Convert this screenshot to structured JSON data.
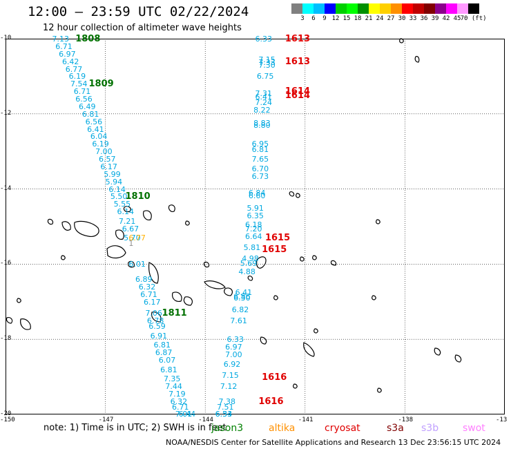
{
  "header": {
    "title": "12:00 – 23:59 UTC 02/22/2024",
    "subtitle": "12 hour collection of altimeter wave heights"
  },
  "colorbar": {
    "colors": [
      "#808080",
      "#00ffff",
      "#00bfff",
      "#0000ff",
      "#00d000",
      "#00ff00",
      "#009000",
      "#ffff00",
      "#ffd000",
      "#ff9000",
      "#ff0000",
      "#c00000",
      "#800000",
      "#8b008b",
      "#ff00ff",
      "#ff99ff",
      "#000000"
    ],
    "ticks": [
      "3",
      "6",
      "9",
      "12",
      "15",
      "18",
      "21",
      "24",
      "27",
      "30",
      "33",
      "36",
      "39",
      "42",
      "45",
      "70 (ft)"
    ]
  },
  "axes": {
    "ylabels": [
      "-10",
      "-12",
      "-14",
      "-16",
      "-18",
      "-20"
    ],
    "xlabels": [
      "-150",
      "-147",
      "-144",
      "-141",
      "-138",
      "-13"
    ]
  },
  "chart_data": {
    "type": "scatter",
    "xlim": [
      -150,
      -135
    ],
    "ylim": [
      -20,
      -10
    ],
    "grid": true,
    "tracks": [
      {
        "color": "#00a8e0",
        "time_labels": [
          {
            "text": "1808",
            "color": "#007000",
            "lon": -147.9,
            "lat": -10.0
          },
          {
            "text": "1809",
            "color": "#007000",
            "lon": -147.5,
            "lat": -11.2
          },
          {
            "text": "1810",
            "color": "#007000",
            "lon": -146.4,
            "lat": -14.2
          },
          {
            "text": "1811",
            "color": "#007000",
            "lon": -145.3,
            "lat": -17.3
          }
        ],
        "points": [
          {
            "lon": -148.6,
            "lat": -10.0,
            "v": "7.13"
          },
          {
            "lon": -148.5,
            "lat": -10.2,
            "v": "6.71"
          },
          {
            "lon": -148.4,
            "lat": -10.4,
            "v": "6.97"
          },
          {
            "lon": -148.3,
            "lat": -10.6,
            "v": "6.42"
          },
          {
            "lon": -148.2,
            "lat": -10.8,
            "v": "6.77"
          },
          {
            "lon": -148.1,
            "lat": -11.0,
            "v": "6.19"
          },
          {
            "lon": -148.05,
            "lat": -11.2,
            "v": "7.54"
          },
          {
            "lon": -147.95,
            "lat": -11.4,
            "v": "6.71"
          },
          {
            "lon": -147.9,
            "lat": -11.6,
            "v": "6.56"
          },
          {
            "lon": -147.8,
            "lat": -11.8,
            "v": "6.49"
          },
          {
            "lon": -147.7,
            "lat": -12.0,
            "v": "6.81"
          },
          {
            "lon": -147.6,
            "lat": -12.2,
            "v": "6.56"
          },
          {
            "lon": -147.55,
            "lat": -12.4,
            "v": "6.41"
          },
          {
            "lon": -147.45,
            "lat": -12.6,
            "v": "6.04"
          },
          {
            "lon": -147.4,
            "lat": -12.8,
            "v": "6.19"
          },
          {
            "lon": -147.3,
            "lat": -13.0,
            "v": "7.00"
          },
          {
            "lon": -147.2,
            "lat": -13.2,
            "v": "6.57"
          },
          {
            "lon": -147.15,
            "lat": -13.4,
            "v": "6.17"
          },
          {
            "lon": -147.05,
            "lat": -13.6,
            "v": "5.99"
          },
          {
            "lon": -147.0,
            "lat": -13.8,
            "v": "5.94"
          },
          {
            "lon": -146.9,
            "lat": -14.0,
            "v": "6.14"
          },
          {
            "lon": -146.85,
            "lat": -14.2,
            "v": "5.50"
          },
          {
            "lon": -146.75,
            "lat": -14.4,
            "v": "5.55"
          },
          {
            "lon": -146.65,
            "lat": -14.6,
            "v": "6.14"
          },
          {
            "lon": -146.6,
            "lat": -14.85,
            "v": "7.21"
          },
          {
            "lon": -146.5,
            "lat": -15.05,
            "v": "6.67"
          },
          {
            "lon": -146.45,
            "lat": -15.3,
            "v": "5.70"
          },
          {
            "lon": -146.3,
            "lat": -16.0,
            "v": "6.01"
          },
          {
            "lon": -146.1,
            "lat": -16.4,
            "v": "6.89"
          },
          {
            "lon": -146.0,
            "lat": -16.6,
            "v": "6.32"
          },
          {
            "lon": -145.95,
            "lat": -16.8,
            "v": "6.71"
          },
          {
            "lon": -145.85,
            "lat": -17.0,
            "v": "6.17"
          },
          {
            "lon": -145.8,
            "lat": -17.3,
            "v": "7.06"
          },
          {
            "lon": -145.75,
            "lat": -17.5,
            "v": "6.78"
          },
          {
            "lon": -145.7,
            "lat": -17.65,
            "v": "6.59"
          },
          {
            "lon": -145.65,
            "lat": -17.9,
            "v": "6.91"
          },
          {
            "lon": -145.55,
            "lat": -18.15,
            "v": "6.81"
          },
          {
            "lon": -145.5,
            "lat": -18.35,
            "v": "6.87"
          },
          {
            "lon": -145.4,
            "lat": -18.55,
            "v": "6.07"
          },
          {
            "lon": -145.35,
            "lat": -18.8,
            "v": "6.81"
          },
          {
            "lon": -145.25,
            "lat": -19.05,
            "v": "7.35"
          },
          {
            "lon": -145.2,
            "lat": -19.25,
            "v": "7.44"
          },
          {
            "lon": -145.1,
            "lat": -19.45,
            "v": "7.19"
          },
          {
            "lon": -145.05,
            "lat": -19.65,
            "v": "6.32"
          },
          {
            "lon": -145.0,
            "lat": -19.8,
            "v": "6.71"
          },
          {
            "lon": -144.9,
            "lat": -20.0,
            "v": "7.01"
          },
          {
            "lon": -144.8,
            "lat": -20.2,
            "v": "6.44"
          }
        ]
      },
      {
        "color": "#00a8e0",
        "time_labels": [
          {
            "text": "1613",
            "color": "#e00000",
            "lon": -141.6,
            "lat": -10.0
          },
          {
            "text": "1613",
            "color": "#e00000",
            "lon": -141.6,
            "lat": -10.6
          },
          {
            "text": "1614",
            "color": "#e00000",
            "lon": -141.6,
            "lat": -11.4
          },
          {
            "text": "1614",
            "color": "#e00000",
            "lon": -141.6,
            "lat": -11.5
          },
          {
            "text": "1615",
            "color": "#e00000",
            "lon": -142.2,
            "lat": -15.3
          },
          {
            "text": "1615",
            "color": "#e00000",
            "lon": -142.3,
            "lat": -15.6
          },
          {
            "text": "1616",
            "color": "#e00000",
            "lon": -142.3,
            "lat": -19.0
          },
          {
            "text": "1616",
            "color": "#e00000",
            "lon": -142.4,
            "lat": -19.65
          }
        ],
        "points": [
          {
            "lon": -142.5,
            "lat": -10.0,
            "v": "6.33"
          },
          {
            "lon": -142.4,
            "lat": -10.55,
            "v": "7.15"
          },
          {
            "lon": -142.4,
            "lat": -10.62,
            "v": "7.33"
          },
          {
            "lon": -142.4,
            "lat": -10.7,
            "v": "7.30"
          },
          {
            "lon": -142.45,
            "lat": -11.0,
            "v": "6.75"
          },
          {
            "lon": -142.5,
            "lat": -11.45,
            "v": "7.31"
          },
          {
            "lon": -142.5,
            "lat": -11.55,
            "v": "6.41"
          },
          {
            "lon": -142.5,
            "lat": -11.7,
            "v": "7.24"
          },
          {
            "lon": -142.55,
            "lat": -11.9,
            "v": "8.22"
          },
          {
            "lon": -142.55,
            "lat": -12.25,
            "v": "8.83"
          },
          {
            "lon": -142.55,
            "lat": -12.3,
            "v": "8.80"
          },
          {
            "lon": -142.6,
            "lat": -12.8,
            "v": "6.95"
          },
          {
            "lon": -142.6,
            "lat": -12.95,
            "v": "6.81"
          },
          {
            "lon": -142.6,
            "lat": -13.2,
            "v": "7.65"
          },
          {
            "lon": -142.6,
            "lat": -13.45,
            "v": "6.70"
          },
          {
            "lon": -142.6,
            "lat": -13.65,
            "v": "6.73"
          },
          {
            "lon": -142.7,
            "lat": -14.1,
            "v": "6.84"
          },
          {
            "lon": -142.7,
            "lat": -14.18,
            "v": "6.60"
          },
          {
            "lon": -142.75,
            "lat": -14.5,
            "v": "5.91"
          },
          {
            "lon": -142.75,
            "lat": -14.7,
            "v": "6.35"
          },
          {
            "lon": -142.8,
            "lat": -14.95,
            "v": "6.18"
          },
          {
            "lon": -142.8,
            "lat": -15.05,
            "v": "7.20"
          },
          {
            "lon": -142.8,
            "lat": -15.25,
            "v": "6.64"
          },
          {
            "lon": -142.85,
            "lat": -15.55,
            "v": "5.81"
          },
          {
            "lon": -142.9,
            "lat": -15.85,
            "v": "4.98"
          },
          {
            "lon": -142.95,
            "lat": -15.97,
            "v": "5.69"
          },
          {
            "lon": -143.0,
            "lat": -16.2,
            "v": "4.88"
          },
          {
            "lon": -143.1,
            "lat": -16.75,
            "v": "6.41"
          },
          {
            "lon": -143.15,
            "lat": -16.85,
            "v": "6.86"
          },
          {
            "lon": -143.15,
            "lat": -16.9,
            "v": "6.30"
          },
          {
            "lon": -143.2,
            "lat": -17.2,
            "v": "6.82"
          },
          {
            "lon": -143.25,
            "lat": -17.5,
            "v": "7.61"
          },
          {
            "lon": -143.35,
            "lat": -18.0,
            "v": "6.33"
          },
          {
            "lon": -143.4,
            "lat": -18.2,
            "v": "6.97"
          },
          {
            "lon": -143.4,
            "lat": -18.4,
            "v": "7.00"
          },
          {
            "lon": -143.45,
            "lat": -18.65,
            "v": "6.92"
          },
          {
            "lon": -143.5,
            "lat": -18.95,
            "v": "7.15"
          },
          {
            "lon": -143.55,
            "lat": -19.25,
            "v": "7.12"
          },
          {
            "lon": -143.6,
            "lat": -19.65,
            "v": "7.38"
          },
          {
            "lon": -143.65,
            "lat": -19.8,
            "v": "7.51"
          },
          {
            "lon": -143.7,
            "lat": -20.0,
            "v": "6.54"
          },
          {
            "lon": -143.7,
            "lat": -20.1,
            "v": "6.33"
          }
        ]
      }
    ],
    "other_labels": [
      {
        "text": "6.77",
        "color": "#ffb000",
        "lon": -146.3,
        "lat": -15.3
      },
      {
        "text": "1",
        "color": "#909090",
        "lon": -146.3,
        "lat": -15.45
      }
    ]
  },
  "footer": {
    "note": "note: 1) Time is in UTC; 2) SWH is in feet",
    "satellites": [
      {
        "name": "jason3",
        "color": "#008000",
        "x": 306
      },
      {
        "name": "altika",
        "color": "#ff9000",
        "x": 389
      },
      {
        "name": "cryosat",
        "color": "#e00000",
        "x": 470
      },
      {
        "name": "s3a",
        "color": "#800000",
        "x": 560
      },
      {
        "name": "s3b",
        "color": "#c0a0ff",
        "x": 610
      },
      {
        "name": "swot",
        "color": "#ff80ff",
        "x": 670
      }
    ],
    "credit": "NOAA/NESDIS Center for Satellite Applications and Research    13 Dec 23:56:15 UTC 2024"
  }
}
